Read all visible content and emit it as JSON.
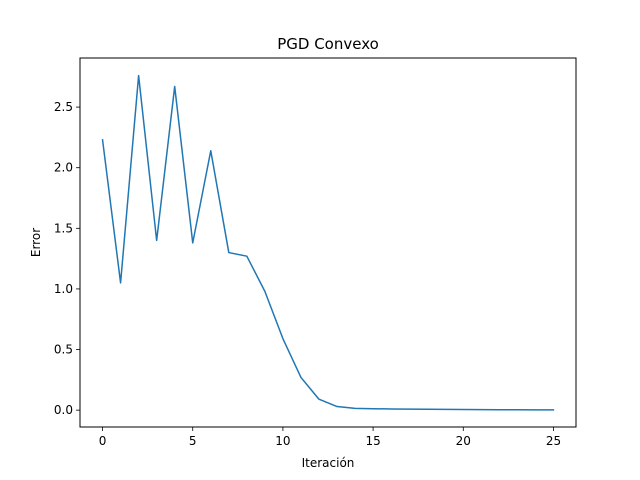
{
  "chart_data": {
    "type": "line",
    "title": "PGD Convexo",
    "xlabel": "Iteración",
    "ylabel": "Error",
    "xlim": [
      -1.25,
      26.25
    ],
    "ylim": [
      -0.139,
      2.905
    ],
    "xticks": [
      0,
      5,
      10,
      15,
      20,
      25
    ],
    "yticks": [
      0.0,
      0.5,
      1.0,
      1.5,
      2.0,
      2.5
    ],
    "xtick_labels": [
      "0",
      "5",
      "10",
      "15",
      "20",
      "25"
    ],
    "ytick_labels": [
      "0.0",
      "0.5",
      "1.0",
      "1.5",
      "2.0",
      "2.5"
    ],
    "grid": false,
    "series": [
      {
        "color": "#1f77b4",
        "x": [
          0,
          1,
          2,
          3,
          4,
          5,
          6,
          7,
          8,
          9,
          10,
          11,
          12,
          13,
          14,
          15,
          16,
          17,
          18,
          19,
          20,
          21,
          22,
          23,
          24,
          25
        ],
        "y": [
          2.23,
          1.05,
          2.76,
          1.4,
          2.67,
          1.38,
          2.14,
          1.3,
          1.27,
          0.98,
          0.59,
          0.27,
          0.09,
          0.03,
          0.015,
          0.012,
          0.01,
          0.008,
          0.007,
          0.006,
          0.005,
          0.004,
          0.003,
          0.003,
          0.002,
          0.002
        ]
      }
    ]
  }
}
